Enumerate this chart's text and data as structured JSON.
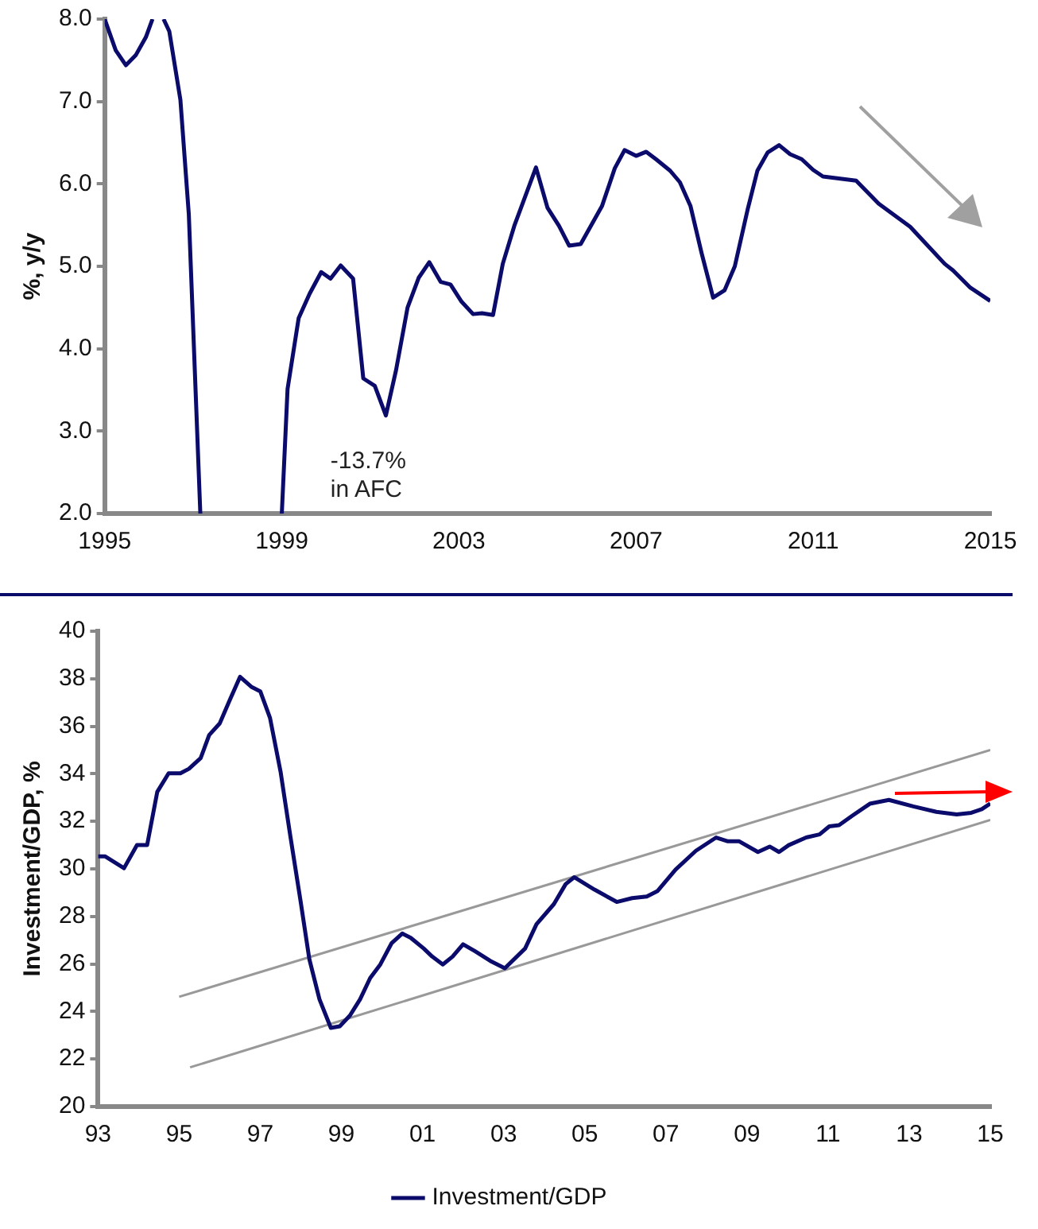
{
  "chart_data": [
    {
      "type": "line",
      "ylabel": "%, y/y",
      "color": "#0b0b6b",
      "line_style": "solid",
      "x": [
        1995.0,
        1995.25,
        1995.48,
        1995.7,
        1995.93,
        1996.08,
        null,
        1996.33,
        1996.46,
        1996.71,
        1996.9,
        1997.16,
        null,
        1999.0,
        1999.13,
        1999.38,
        1999.63,
        1999.89,
        2000.1,
        2000.33,
        2000.61,
        2000.84,
        2001.1,
        2001.35,
        2001.58,
        2001.84,
        2002.09,
        2002.33,
        2002.59,
        2002.81,
        2003.06,
        2003.32,
        2003.52,
        2003.77,
        2003.99,
        2004.25,
        2004.74,
        2005.0,
        2005.26,
        2005.49,
        2005.75,
        2006.23,
        2006.52,
        2006.74,
        2007.0,
        2007.23,
        2007.45,
        2007.77,
        2007.99,
        2008.23,
        2008.48,
        2008.74,
        2009.0,
        2009.23,
        2009.52,
        2009.74,
        2009.97,
        2010.23,
        2010.48,
        2010.74,
        2011.0,
        2011.22,
        2011.97,
        2012.48,
        2013.19,
        2013.52,
        2013.97,
        2014.16,
        2014.55,
        2015.0
      ],
      "values": [
        8.0,
        7.62,
        7.44,
        7.56,
        7.78,
        8.0,
        null,
        8.0,
        7.85,
        7.02,
        5.63,
        2.0,
        null,
        2.0,
        3.51,
        4.37,
        4.67,
        4.93,
        4.85,
        5.01,
        4.85,
        3.64,
        3.55,
        3.19,
        3.74,
        4.5,
        4.86,
        5.05,
        4.81,
        4.78,
        4.57,
        4.42,
        4.43,
        4.41,
        5.03,
        5.49,
        6.2,
        5.71,
        5.49,
        5.25,
        5.27,
        5.73,
        6.19,
        6.41,
        6.34,
        6.39,
        6.3,
        6.16,
        6.02,
        5.73,
        5.16,
        4.62,
        4.71,
        5.0,
        5.69,
        6.16,
        6.38,
        6.47,
        6.36,
        6.3,
        6.17,
        6.09,
        6.04,
        5.76,
        5.48,
        5.29,
        5.03,
        4.95,
        4.74,
        4.58
      ],
      "xlim": [
        1995,
        2015
      ],
      "xticks": [
        1995,
        1999,
        2003,
        2007,
        2011,
        2015
      ],
      "ylim": [
        2,
        8
      ],
      "yticks": [
        {
          "value": 2,
          "label": "2.0"
        },
        {
          "value": 3,
          "label": "3.0"
        },
        {
          "value": 4,
          "label": "4.0"
        },
        {
          "value": 5,
          "label": "5.0"
        },
        {
          "value": 6,
          "label": "6.0"
        },
        {
          "value": 7,
          "label": "7.0"
        },
        {
          "value": 8,
          "label": "8.0"
        }
      ],
      "annotations": [
        "-13.7%\nin AFC"
      ]
    },
    {
      "type": "line",
      "ylabel": "Investment/GDP, %",
      "legend": "bottom",
      "line_style": "solid",
      "series": [
        {
          "name": "Investment/GDP",
          "color": "#0b0b6b",
          "x": [
            1993.0,
            1993.17,
            1993.64,
            1993.96,
            1994.21,
            1994.46,
            1994.74,
            1995.03,
            1995.24,
            1995.53,
            1995.74,
            1996.0,
            1996.24,
            1996.5,
            1996.79,
            1997.0,
            1997.24,
            1997.5,
            1997.74,
            1997.99,
            1998.21,
            1998.46,
            1998.74,
            1998.96,
            1999.21,
            1999.46,
            1999.71,
            1999.96,
            2000.24,
            2000.5,
            2000.71,
            2001.03,
            2001.24,
            2001.5,
            2001.74,
            2002.0,
            2002.29,
            2002.67,
            2003.03,
            2003.53,
            2003.81,
            2004.24,
            2004.53,
            2004.74,
            2005.24,
            2005.79,
            2006.17,
            2006.53,
            2006.79,
            2007.24,
            2007.74,
            2008.24,
            2008.53,
            2008.81,
            2009.27,
            2009.56,
            2009.79,
            2010.03,
            2010.46,
            2010.79,
            2011.03,
            2011.27,
            2011.6,
            2012.03,
            2012.5,
            2013.1,
            2013.67,
            2014.17,
            2014.53,
            2014.79,
            2015.0
          ],
          "values": [
            30.53,
            30.53,
            30.03,
            31.0,
            31.0,
            33.24,
            34.02,
            34.02,
            34.21,
            34.66,
            35.63,
            36.12,
            37.07,
            38.08,
            37.65,
            37.47,
            36.35,
            34.09,
            31.39,
            28.68,
            26.2,
            24.51,
            23.31,
            23.38,
            23.83,
            24.51,
            25.41,
            25.98,
            26.88,
            27.28,
            27.1,
            26.65,
            26.31,
            25.98,
            26.31,
            26.83,
            26.54,
            26.13,
            25.82,
            26.65,
            27.67,
            28.52,
            29.36,
            29.65,
            29.13,
            28.61,
            28.77,
            28.84,
            29.06,
            29.97,
            30.76,
            31.32,
            31.16,
            31.16,
            30.71,
            30.94,
            30.71,
            31.0,
            31.32,
            31.45,
            31.79,
            31.84,
            32.24,
            32.74,
            32.9,
            32.63,
            32.4,
            32.29,
            32.36,
            32.51,
            32.75
          ]
        },
        {
          "type": "line",
          "color": "#999999",
          "x": [
            1995.0,
            2015.0
          ],
          "values": [
            24.62,
            35.0
          ]
        },
        {
          "type": "line",
          "color": "#999999",
          "x": [
            1995.27,
            2015.0
          ],
          "values": [
            21.65,
            32.06
          ]
        }
      ],
      "xlim": [
        1993,
        2015
      ],
      "xticks": [
        {
          "value": 1993,
          "label": "93"
        },
        {
          "value": 1995,
          "label": "95"
        },
        {
          "value": 1997,
          "label": "97"
        },
        {
          "value": 1999,
          "label": "99"
        },
        {
          "value": 2001,
          "label": "01"
        },
        {
          "value": 2003,
          "label": "03"
        },
        {
          "value": 2005,
          "label": "05"
        },
        {
          "value": 2007,
          "label": "07"
        },
        {
          "value": 2009,
          "label": "09"
        },
        {
          "value": 2011,
          "label": "11"
        },
        {
          "value": 2013,
          "label": "13"
        },
        {
          "value": 2015,
          "label": "15"
        }
      ],
      "ylim": [
        20,
        40
      ],
      "yticks": [
        20,
        22,
        24,
        26,
        28,
        30,
        32,
        34,
        36,
        38,
        40
      ]
    }
  ]
}
